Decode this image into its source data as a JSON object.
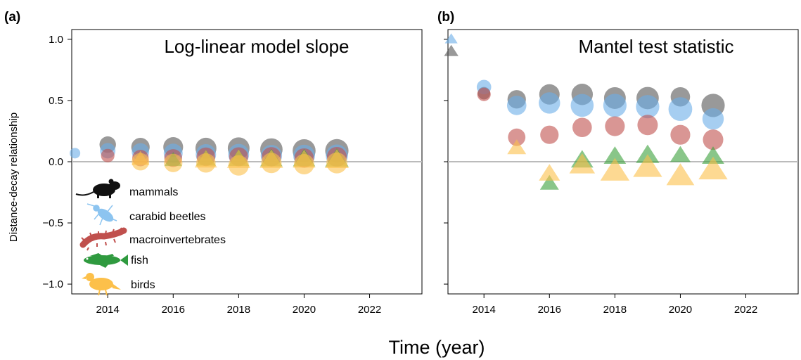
{
  "figure": {
    "ylabel": "Distance-decay relationship",
    "xlabel": "Time (year)",
    "y_ticks": [
      1.0,
      0.5,
      0.0,
      -0.5,
      -1.0
    ],
    "y_tick_labels": [
      "1.0",
      "0.5",
      "0.0",
      "−0.5",
      "−1.0"
    ],
    "x_ticks": [
      2014,
      2016,
      2018,
      2020,
      2022
    ],
    "x_tick_labels": [
      "2014",
      "2016",
      "2018",
      "2020",
      "2022"
    ],
    "xlim": [
      2012.9,
      2023.6
    ],
    "ylim": [
      -1.08,
      1.08
    ],
    "colors": {
      "mammals": "#555555",
      "carabid beetles": "#6aaee8",
      "macroinvertebrates": "#c0504d",
      "fish": "#3aa03a",
      "birds": "#fcc04a",
      "overlap_blue": "#3a7cc4",
      "zero_line": "#bbbbbb"
    },
    "legend": {
      "placement": "lower-left of panel (a)",
      "entries": [
        {
          "label": "mammals",
          "icon": "mouse-silhouette-icon"
        },
        {
          "label": "carabid beetles",
          "icon": "beetle-silhouette-icon"
        },
        {
          "label": "macroinvertebrates",
          "icon": "larva-silhouette-icon"
        },
        {
          "label": "fish",
          "icon": "fish-silhouette-icon"
        },
        {
          "label": "birds",
          "icon": "bird-silhouette-icon"
        }
      ]
    }
  },
  "chart_data": [
    {
      "type": "scatter",
      "panel_label": "(a)",
      "title": "Log-linear model slope",
      "xlim": [
        2012.9,
        2023.6
      ],
      "ylim": [
        -1.08,
        1.08
      ],
      "series": [
        {
          "name": "mammals",
          "shape": "circle",
          "color": "#555555",
          "points": [
            {
              "x": 2014,
              "y": 0.14,
              "s": 0.55
            },
            {
              "x": 2015,
              "y": 0.12,
              "s": 0.65
            },
            {
              "x": 2016,
              "y": 0.12,
              "s": 0.72
            },
            {
              "x": 2017,
              "y": 0.11,
              "s": 0.78
            },
            {
              "x": 2018,
              "y": 0.11,
              "s": 0.82
            },
            {
              "x": 2019,
              "y": 0.1,
              "s": 0.85
            },
            {
              "x": 2020,
              "y": 0.09,
              "s": 0.88
            },
            {
              "x": 2021,
              "y": 0.09,
              "s": 0.9
            }
          ]
        },
        {
          "name": "carabid beetles",
          "shape": "circle",
          "color": "#6aaee8",
          "points": [
            {
              "x": 2013,
              "y": 0.07,
              "s": 0.25
            },
            {
              "x": 2014,
              "y": 0.09,
              "s": 0.5
            },
            {
              "x": 2015,
              "y": 0.08,
              "s": 0.6
            },
            {
              "x": 2016,
              "y": 0.07,
              "s": 0.68
            },
            {
              "x": 2017,
              "y": 0.06,
              "s": 0.75
            },
            {
              "x": 2018,
              "y": 0.06,
              "s": 0.78
            },
            {
              "x": 2019,
              "y": 0.05,
              "s": 0.8
            },
            {
              "x": 2020,
              "y": 0.05,
              "s": 0.82
            },
            {
              "x": 2021,
              "y": 0.05,
              "s": 0.84
            }
          ]
        },
        {
          "name": "macroinvertebrates",
          "shape": "circle",
          "color": "#c0504d",
          "points": [
            {
              "x": 2014,
              "y": 0.05,
              "s": 0.4
            },
            {
              "x": 2015,
              "y": 0.03,
              "s": 0.55
            },
            {
              "x": 2016,
              "y": 0.03,
              "s": 0.62
            },
            {
              "x": 2017,
              "y": 0.04,
              "s": 0.66
            },
            {
              "x": 2018,
              "y": 0.04,
              "s": 0.68
            },
            {
              "x": 2019,
              "y": 0.04,
              "s": 0.7
            },
            {
              "x": 2020,
              "y": 0.03,
              "s": 0.7
            },
            {
              "x": 2021,
              "y": 0.04,
              "s": 0.72
            }
          ]
        },
        {
          "name": "fish",
          "shape": "triangle",
          "color": "#3aa03a",
          "points": [
            {
              "x": 2016,
              "y": 0.01,
              "s": 0.5
            },
            {
              "x": 2017,
              "y": 0.02,
              "s": 0.6
            },
            {
              "x": 2018,
              "y": 0.02,
              "s": 0.65
            },
            {
              "x": 2019,
              "y": 0.02,
              "s": 0.7
            },
            {
              "x": 2020,
              "y": 0.02,
              "s": 0.7
            },
            {
              "x": 2021,
              "y": 0.02,
              "s": 0.75
            }
          ]
        },
        {
          "name": "birds",
          "shape": "circle",
          "color": "#fcc04a",
          "points": [
            {
              "x": 2015,
              "y": 0.0,
              "s": 0.6
            },
            {
              "x": 2016,
              "y": -0.01,
              "s": 0.65
            },
            {
              "x": 2017,
              "y": -0.01,
              "s": 0.7
            },
            {
              "x": 2018,
              "y": -0.03,
              "s": 0.75
            },
            {
              "x": 2019,
              "y": -0.01,
              "s": 0.75
            },
            {
              "x": 2020,
              "y": -0.02,
              "s": 0.75
            },
            {
              "x": 2021,
              "y": -0.01,
              "s": 0.78
            }
          ]
        },
        {
          "name": "birds",
          "shape": "triangle",
          "color": "#fcc04a",
          "points": [
            {
              "x": 2015,
              "y": 0.02,
              "s": 0.5
            },
            {
              "x": 2017,
              "y": 0.01,
              "s": 0.7
            },
            {
              "x": 2018,
              "y": 0.01,
              "s": 0.75
            },
            {
              "x": 2019,
              "y": 0.01,
              "s": 0.75
            },
            {
              "x": 2020,
              "y": 0.01,
              "s": 0.72
            },
            {
              "x": 2021,
              "y": 0.01,
              "s": 0.78
            }
          ]
        }
      ]
    },
    {
      "type": "scatter",
      "panel_label": "(b)",
      "title": "Mantel test statistic",
      "xlim": [
        2012.9,
        2023.6
      ],
      "ylim": [
        -1.08,
        1.08
      ],
      "series": [
        {
          "name": "mammals",
          "shape": "circle",
          "color": "#555555",
          "points": [
            {
              "x": 2014,
              "y": 0.56,
              "s": 0.35
            },
            {
              "x": 2015,
              "y": 0.51,
              "s": 0.65
            },
            {
              "x": 2016,
              "y": 0.55,
              "s": 0.75
            },
            {
              "x": 2017,
              "y": 0.55,
              "s": 0.8
            },
            {
              "x": 2018,
              "y": 0.52,
              "s": 0.82
            },
            {
              "x": 2019,
              "y": 0.52,
              "s": 0.85
            },
            {
              "x": 2020,
              "y": 0.53,
              "s": 0.7
            },
            {
              "x": 2021,
              "y": 0.46,
              "s": 0.9
            }
          ]
        },
        {
          "name": "carabid beetles",
          "shape": "circle",
          "color": "#6aaee8",
          "points": [
            {
              "x": 2014,
              "y": 0.61,
              "s": 0.45
            },
            {
              "x": 2015,
              "y": 0.46,
              "s": 0.7
            },
            {
              "x": 2016,
              "y": 0.48,
              "s": 0.8
            },
            {
              "x": 2017,
              "y": 0.46,
              "s": 0.88
            },
            {
              "x": 2018,
              "y": 0.46,
              "s": 0.9
            },
            {
              "x": 2019,
              "y": 0.45,
              "s": 0.9
            },
            {
              "x": 2020,
              "y": 0.43,
              "s": 0.92
            },
            {
              "x": 2021,
              "y": 0.35,
              "s": 0.8
            }
          ]
        },
        {
          "name": "macroinvertebrates",
          "shape": "circle",
          "color": "#c0504d",
          "points": [
            {
              "x": 2014,
              "y": 0.55,
              "s": 0.4
            },
            {
              "x": 2015,
              "y": 0.2,
              "s": 0.6
            },
            {
              "x": 2016,
              "y": 0.22,
              "s": 0.65
            },
            {
              "x": 2017,
              "y": 0.28,
              "s": 0.7
            },
            {
              "x": 2018,
              "y": 0.29,
              "s": 0.72
            },
            {
              "x": 2019,
              "y": 0.3,
              "s": 0.75
            },
            {
              "x": 2020,
              "y": 0.22,
              "s": 0.72
            },
            {
              "x": 2021,
              "y": 0.18,
              "s": 0.75
            }
          ]
        },
        {
          "name": "fish",
          "shape": "triangle",
          "color": "#3aa03a",
          "points": [
            {
              "x": 2016,
              "y": -0.18,
              "s": 0.55
            },
            {
              "x": 2017,
              "y": 0.01,
              "s": 0.7
            },
            {
              "x": 2018,
              "y": 0.04,
              "s": 0.7
            },
            {
              "x": 2019,
              "y": 0.05,
              "s": 0.75
            },
            {
              "x": 2020,
              "y": 0.05,
              "s": 0.62
            },
            {
              "x": 2021,
              "y": 0.04,
              "s": 0.7
            }
          ]
        },
        {
          "name": "birds",
          "shape": "triangle",
          "color": "#fcc04a",
          "points": [
            {
              "x": 2015,
              "y": 0.11,
              "s": 0.55
            },
            {
              "x": 2016,
              "y": -0.1,
              "s": 0.65
            },
            {
              "x": 2017,
              "y": -0.03,
              "s": 0.85
            },
            {
              "x": 2018,
              "y": -0.08,
              "s": 1.0
            },
            {
              "x": 2019,
              "y": -0.05,
              "s": 1.0
            },
            {
              "x": 2020,
              "y": -0.12,
              "s": 0.95
            },
            {
              "x": 2021,
              "y": -0.07,
              "s": 1.0
            }
          ]
        },
        {
          "name": "carabid beetles",
          "shape": "triangle",
          "color": "#6aaee8",
          "points": [
            {
              "x": 2013,
              "y": 1.0,
              "s": 0.28
            }
          ]
        },
        {
          "name": "mammals",
          "shape": "triangle",
          "color": "#555555",
          "points": [
            {
              "x": 2013,
              "y": 0.9,
              "s": 0.35
            }
          ]
        }
      ]
    }
  ]
}
